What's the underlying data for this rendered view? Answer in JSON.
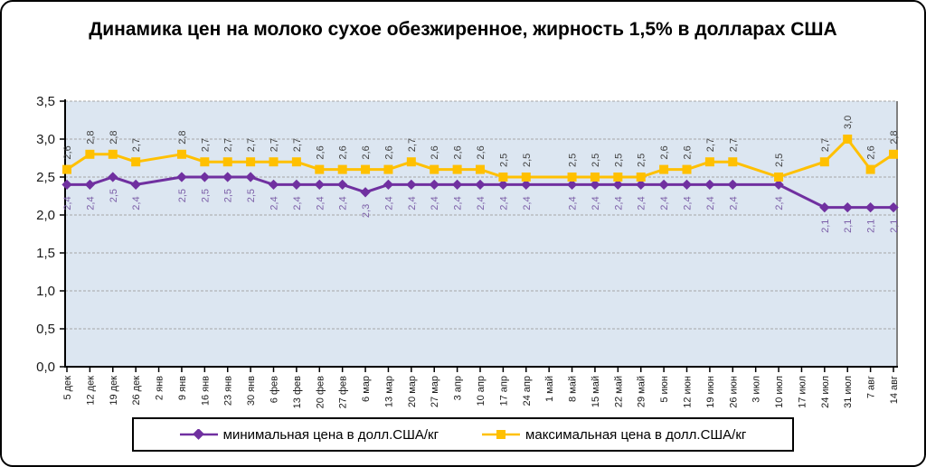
{
  "page": {
    "background": "#FFFFFF",
    "border_color": "#000000"
  },
  "chart_data": {
    "type": "line",
    "title": "Динамика цен на молоко сухое обезжиренное, жирность 1,5% в долларах США",
    "categories": [
      "5 дек",
      "12 дек",
      "19 дек",
      "26 дек",
      "2 янв",
      "9 янв",
      "16 янв",
      "23 янв",
      "30 янв",
      "6 фев",
      "13 фев",
      "20 фев",
      "27 фев",
      "6 мар",
      "13 мар",
      "20 мар",
      "27 мар",
      "3 апр",
      "10 апр",
      "17 апр",
      "24 апр",
      "1 май",
      "8 май",
      "15 май",
      "22 май",
      "29 май",
      "5 июн",
      "12 июн",
      "19 июн",
      "26 июн",
      "3 июл",
      "10 июл",
      "17 июл",
      "24 июл",
      "31 июл",
      "7 авг",
      "14 авг"
    ],
    "series": [
      {
        "name": "минимальная цена в долл.США/кг",
        "marker": "diamond",
        "color": "#7030A0",
        "label_color": "#7B5EA7",
        "values": [
          2.4,
          2.4,
          2.5,
          2.4,
          null,
          2.5,
          2.5,
          2.5,
          2.5,
          2.4,
          2.4,
          2.4,
          2.4,
          2.3,
          2.4,
          2.4,
          2.4,
          2.4,
          2.4,
          2.4,
          2.4,
          null,
          2.4,
          2.4,
          2.4,
          2.4,
          2.4,
          2.4,
          2.4,
          2.4,
          null,
          2.4,
          null,
          2.1,
          2.1,
          2.1,
          2.1
        ]
      },
      {
        "name": "максимальная цена в долл.США/кг",
        "marker": "square",
        "color": "#FFC000",
        "label_color": "#3F3F3F",
        "values": [
          2.6,
          2.8,
          2.8,
          2.7,
          null,
          2.8,
          2.7,
          2.7,
          2.7,
          2.7,
          2.7,
          2.6,
          2.6,
          2.6,
          2.6,
          2.7,
          2.6,
          2.6,
          2.6,
          2.5,
          2.5,
          null,
          2.5,
          2.5,
          2.5,
          2.5,
          2.6,
          2.6,
          2.7,
          2.7,
          null,
          2.5,
          null,
          2.7,
          3.0,
          2.6,
          2.8
        ]
      }
    ],
    "ylim": [
      0,
      3.5
    ],
    "y_step": 0.5,
    "decimal_separator": ",",
    "y_tick_labels": [
      "0,0",
      "0,5",
      "1,0",
      "1,5",
      "2,0",
      "2,5",
      "3,0",
      "3,5"
    ],
    "grid": {
      "horizontal": true,
      "style": "dashed",
      "color": "#A6A6A6"
    },
    "plot_bg": "#DCE6F1",
    "axis_color": "#000000",
    "plot_right_border_color": "#808080",
    "legend_position": "bottom",
    "data_labels_rotation": -90,
    "x_labels_rotation": -90
  }
}
